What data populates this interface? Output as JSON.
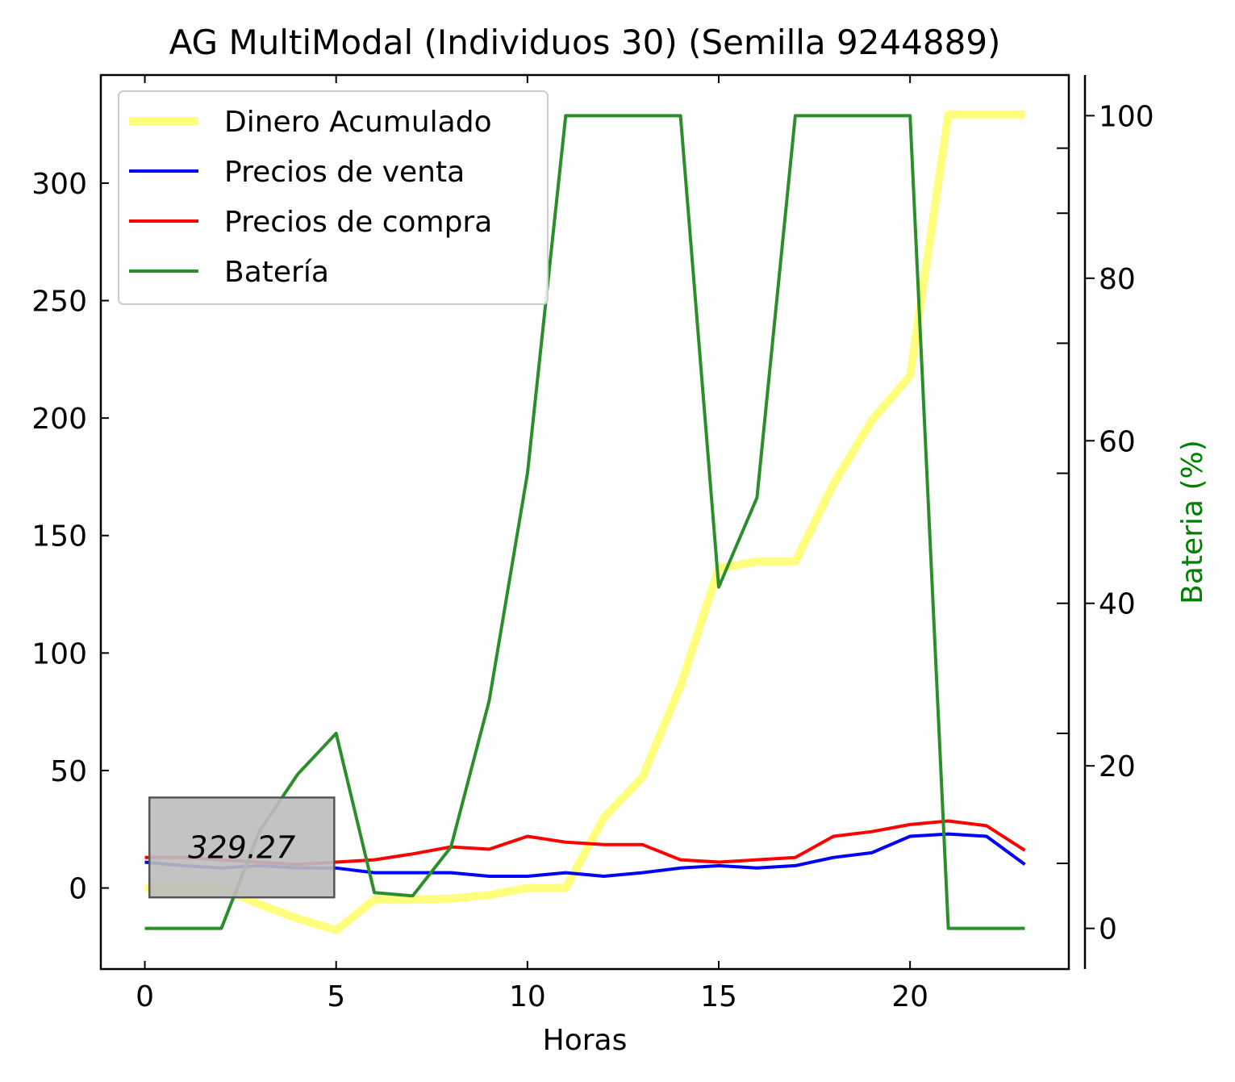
{
  "chart_data": {
    "type": "line",
    "title": "AG MultiModal (Individuos 30) (Semilla 9244889)",
    "xlabel": "Horas",
    "ylabel": "",
    "y2label": "Bateria (%)",
    "xlim": [
      -1.15,
      24.15
    ],
    "ylim": [
      -34.5,
      346
    ],
    "y2lim": [
      -5,
      105
    ],
    "xticks": [
      0,
      5,
      10,
      15,
      20
    ],
    "yticks": [
      0,
      50,
      100,
      150,
      200,
      250,
      300
    ],
    "y2ticks": [
      0,
      20,
      40,
      60,
      80,
      100
    ],
    "y2minor": [
      8,
      24,
      40,
      56,
      72,
      88,
      96
    ],
    "x": [
      0,
      1,
      2,
      3,
      4,
      5,
      6,
      7,
      8,
      9,
      10,
      11,
      12,
      13,
      14,
      15,
      16,
      17,
      18,
      19,
      20,
      21,
      22,
      23
    ],
    "series": [
      {
        "name": "Dinero Acumulado",
        "axis": "left",
        "color": "#ffff66",
        "width": 10,
        "opacity": 0.85,
        "values": [
          0,
          0,
          0,
          -7,
          -13,
          -18,
          -5,
          -5,
          -4.5,
          -3,
          0,
          0,
          30,
          47,
          86,
          136,
          139,
          139,
          172,
          199,
          218,
          329.27,
          329.27,
          329.27
        ]
      },
      {
        "name": "Precios de venta",
        "axis": "left",
        "color": "#0000ff",
        "width": 4,
        "opacity": 1,
        "values": [
          11,
          9.5,
          8.5,
          9.5,
          8.5,
          8.5,
          6.5,
          6.5,
          6.5,
          5,
          5,
          6.5,
          5,
          6.5,
          8.5,
          9.5,
          8.5,
          9.5,
          13,
          15,
          22,
          23,
          22,
          10
        ]
      },
      {
        "name": "Precios de compra",
        "axis": "left",
        "color": "#ff0000",
        "width": 4,
        "opacity": 1,
        "values": [
          13,
          13,
          12,
          11,
          10,
          11,
          12,
          14.5,
          17.5,
          16.5,
          22,
          19.5,
          18.5,
          18.5,
          12,
          11,
          12,
          13,
          22,
          24,
          27,
          28.5,
          26.5,
          16
        ]
      },
      {
        "name": "Batería",
        "axis": "right",
        "color": "#2a8f2a",
        "width": 4,
        "opacity": 1,
        "values": [
          0,
          0,
          0,
          12,
          19,
          24,
          4.4,
          4,
          10,
          28,
          56,
          100,
          100,
          100,
          100,
          42,
          53,
          100,
          100,
          100,
          100,
          0,
          0,
          0
        ]
      }
    ],
    "legend": {
      "position": "upper-left",
      "items": [
        "Dinero Acumulado",
        "Precios de venta",
        "Precios de compra",
        "Batería"
      ]
    },
    "annotation": {
      "text": "329.27",
      "x0": 0.12,
      "x1": 4.95,
      "y0": -4,
      "y1": 38.5
    },
    "colors": {
      "axis": "#000000",
      "y2label": "#008000",
      "annotation_box": "#bcbcbc"
    }
  }
}
